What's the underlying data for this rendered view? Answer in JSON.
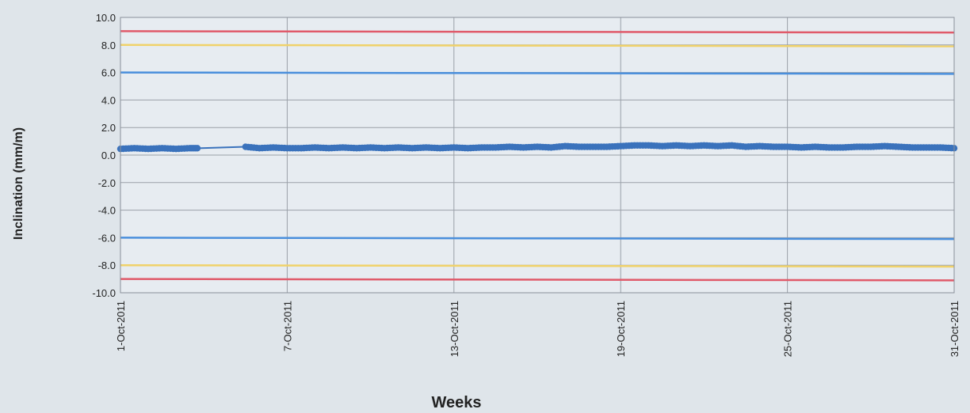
{
  "chart_data": {
    "type": "line",
    "title": "",
    "xlabel": "Weeks",
    "ylabel": "Inclination (mm/m)",
    "xlim": [
      "2011-10-01",
      "2011-10-31"
    ],
    "ylim": [
      -10,
      10
    ],
    "y_ticks": [
      "10.0",
      "8.0",
      "6.0",
      "4.0",
      "2.0",
      "0.0",
      "-2.0",
      "-4.0",
      "-6.0",
      "-8.0",
      "-10.0"
    ],
    "x_ticks": [
      "1-Oct-2011",
      "7-Oct-2011",
      "13-Oct-2011",
      "19-Oct-2011",
      "25-Oct-2011",
      "31-Oct-2011"
    ],
    "grid": true,
    "legend": "none",
    "reference_lines": [
      {
        "color": "#e05a6a",
        "y_start": 9.0,
        "y_end": 8.9
      },
      {
        "color": "#f0d26a",
        "y_start": 8.0,
        "y_end": 7.9
      },
      {
        "color": "#4a8fdc",
        "y_start": 6.0,
        "y_end": 5.9
      },
      {
        "color": "#4a8fdc",
        "y_start": -6.0,
        "y_end": -6.1
      },
      {
        "color": "#f0d26a",
        "y_start": -8.0,
        "y_end": -8.1
      },
      {
        "color": "#e05a6a",
        "y_start": -9.0,
        "y_end": -9.1
      }
    ],
    "series": [
      {
        "color": "#3a72bc",
        "points": [
          [
            "2011-10-01",
            0.45
          ],
          [
            "2011-10-01T12:00",
            0.5
          ],
          [
            "2011-10-02",
            0.45
          ],
          [
            "2011-10-02T12:00",
            0.5
          ],
          [
            "2011-10-03",
            0.45
          ],
          [
            "2011-10-03T12:00",
            0.5
          ],
          [
            "2011-10-03T20:00",
            0.5
          ],
          [
            "2011-10-05T12:00",
            0.6
          ],
          [
            "2011-10-06",
            0.5
          ],
          [
            "2011-10-06T12:00",
            0.55
          ],
          [
            "2011-10-07",
            0.5
          ],
          [
            "2011-10-07T12:00",
            0.5
          ],
          [
            "2011-10-08",
            0.55
          ],
          [
            "2011-10-08T12:00",
            0.5
          ],
          [
            "2011-10-09",
            0.55
          ],
          [
            "2011-10-09T12:00",
            0.5
          ],
          [
            "2011-10-10",
            0.55
          ],
          [
            "2011-10-10T12:00",
            0.5
          ],
          [
            "2011-10-11",
            0.55
          ],
          [
            "2011-10-11T12:00",
            0.5
          ],
          [
            "2011-10-12",
            0.55
          ],
          [
            "2011-10-12T12:00",
            0.5
          ],
          [
            "2011-10-13",
            0.55
          ],
          [
            "2011-10-13T12:00",
            0.5
          ],
          [
            "2011-10-14",
            0.55
          ],
          [
            "2011-10-14T12:00",
            0.55
          ],
          [
            "2011-10-15",
            0.6
          ],
          [
            "2011-10-15T12:00",
            0.55
          ],
          [
            "2011-10-16",
            0.6
          ],
          [
            "2011-10-16T12:00",
            0.55
          ],
          [
            "2011-10-17",
            0.65
          ],
          [
            "2011-10-17T12:00",
            0.6
          ],
          [
            "2011-10-18",
            0.6
          ],
          [
            "2011-10-18T12:00",
            0.6
          ],
          [
            "2011-10-19",
            0.65
          ],
          [
            "2011-10-19T12:00",
            0.7
          ],
          [
            "2011-10-20",
            0.7
          ],
          [
            "2011-10-20T12:00",
            0.65
          ],
          [
            "2011-10-21",
            0.7
          ],
          [
            "2011-10-21T12:00",
            0.65
          ],
          [
            "2011-10-22",
            0.7
          ],
          [
            "2011-10-22T12:00",
            0.65
          ],
          [
            "2011-10-23",
            0.7
          ],
          [
            "2011-10-23T12:00",
            0.6
          ],
          [
            "2011-10-24",
            0.65
          ],
          [
            "2011-10-24T12:00",
            0.6
          ],
          [
            "2011-10-25",
            0.6
          ],
          [
            "2011-10-25T12:00",
            0.55
          ],
          [
            "2011-10-26",
            0.6
          ],
          [
            "2011-10-26T12:00",
            0.55
          ],
          [
            "2011-10-27",
            0.55
          ],
          [
            "2011-10-27T12:00",
            0.6
          ],
          [
            "2011-10-28",
            0.6
          ],
          [
            "2011-10-28T12:00",
            0.65
          ],
          [
            "2011-10-29",
            0.6
          ],
          [
            "2011-10-29T12:00",
            0.55
          ],
          [
            "2011-10-30",
            0.55
          ],
          [
            "2011-10-30T12:00",
            0.55
          ],
          [
            "2011-10-31",
            0.5
          ]
        ]
      }
    ]
  }
}
